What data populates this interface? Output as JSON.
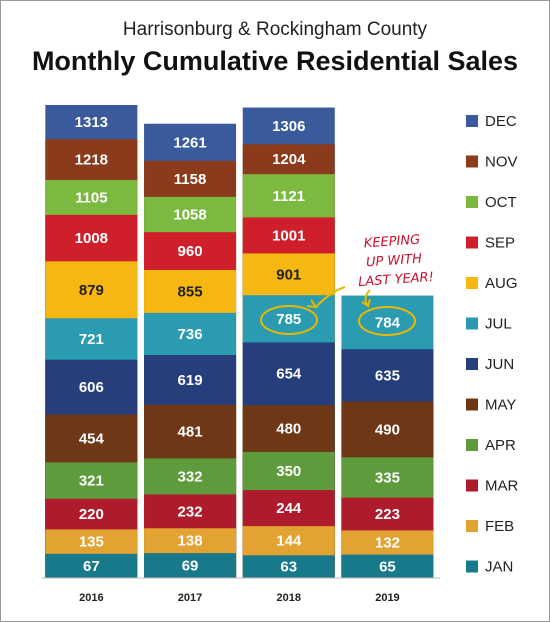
{
  "chart_data": {
    "type": "overlapping-bar",
    "subtitle": "Harrisonburg & Rockingham County",
    "title": "Monthly Cumulative Residential Sales",
    "categories": [
      "2016",
      "2017",
      "2018",
      "2019"
    ],
    "ylim": [
      0,
      1313
    ],
    "annotation": [
      "KEEPING",
      "UP WITH",
      "LAST YEAR!"
    ],
    "series": [
      {
        "name": "JAN",
        "color": "#17798a",
        "label_color": "#ffffff",
        "values": [
          67,
          69,
          63,
          65
        ]
      },
      {
        "name": "FEB",
        "color": "#e3a332",
        "label_color": "#ffffff",
        "values": [
          135,
          138,
          144,
          132
        ]
      },
      {
        "name": "MAR",
        "color": "#ad1b2d",
        "label_color": "#ffffff",
        "values": [
          220,
          232,
          244,
          223
        ]
      },
      {
        "name": "APR",
        "color": "#5e9b3c",
        "label_color": "#ffffff",
        "values": [
          321,
          332,
          350,
          335
        ]
      },
      {
        "name": "MAY",
        "color": "#6e3716",
        "label_color": "#ffffff",
        "values": [
          454,
          481,
          480,
          490
        ]
      },
      {
        "name": "JUN",
        "color": "#263e7b",
        "label_color": "#ffffff",
        "values": [
          606,
          619,
          654,
          635
        ]
      },
      {
        "name": "JUL",
        "color": "#2b9bb2",
        "label_color": "#ffffff",
        "values": [
          721,
          736,
          785,
          784
        ]
      },
      {
        "name": "AUG",
        "color": "#f6b713",
        "label_color": "#222222",
        "values": [
          879,
          855,
          901,
          null
        ]
      },
      {
        "name": "SEP",
        "color": "#cf1f2b",
        "label_color": "#ffffff",
        "values": [
          1008,
          960,
          1001,
          null
        ]
      },
      {
        "name": "OCT",
        "color": "#7cb941",
        "label_color": "#ffffff",
        "values": [
          1105,
          1058,
          1121,
          null
        ]
      },
      {
        "name": "NOV",
        "color": "#8b3a1b",
        "label_color": "#ffffff",
        "values": [
          1218,
          1158,
          1204,
          null
        ]
      },
      {
        "name": "DEC",
        "color": "#3a5a9b",
        "label_color": "#ffffff",
        "values": [
          1313,
          1261,
          1306,
          null
        ]
      }
    ]
  }
}
